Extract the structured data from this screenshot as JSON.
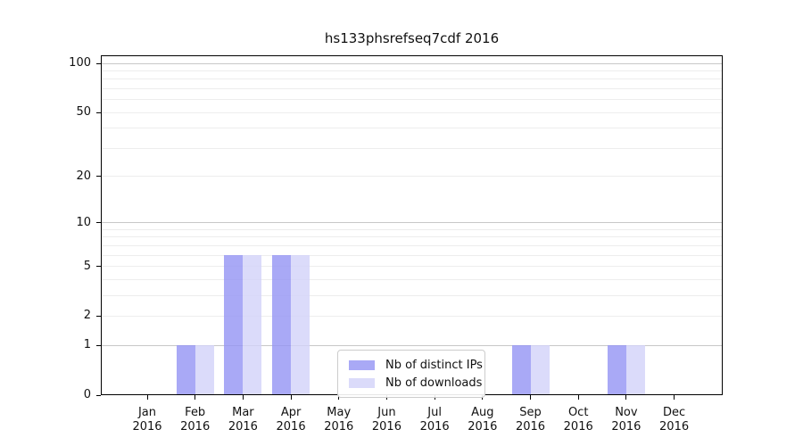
{
  "chart_data": {
    "type": "bar",
    "title": "hs133phsrefseq7cdf 2016",
    "categories": [
      "Jan 2016",
      "Feb 2016",
      "Mar 2016",
      "Apr 2016",
      "May 2016",
      "Jun 2016",
      "Jul 2016",
      "Aug 2016",
      "Sep 2016",
      "Oct 2016",
      "Nov 2016",
      "Dec 2016"
    ],
    "series": [
      {
        "name": "Nb of distinct IPs",
        "color": "rgba(148,148,244,0.8)",
        "values": [
          0,
          1,
          6,
          6,
          0,
          0,
          0,
          0,
          1,
          0,
          1,
          0
        ]
      },
      {
        "name": "Nb of downloads",
        "color": "rgba(210,210,249,0.8)",
        "values": [
          0,
          1,
          6,
          6,
          0,
          0,
          0,
          0,
          1,
          0,
          1,
          0
        ]
      }
    ],
    "xlabel": "",
    "ylabel": "",
    "yscale": "log1p",
    "ylim": [
      0,
      112
    ],
    "ytick_labels": [
      "0",
      "1",
      "2",
      "5",
      "10",
      "20",
      "50",
      "100"
    ],
    "ytick_values": [
      0,
      1,
      2,
      5,
      10,
      20,
      50,
      100
    ],
    "major_gridlines": [
      1,
      10,
      100
    ],
    "minor_gridlines": [
      2,
      3,
      4,
      5,
      6,
      7,
      8,
      9,
      20,
      30,
      40,
      50,
      60,
      70,
      80,
      90
    ],
    "grid": "on",
    "legend_position": "lower center-right inside plot"
  },
  "colors": {
    "major_grid": "#c8c8c8",
    "minor_grid": "#ededed",
    "frame": "#000000",
    "text": "#111111",
    "legend_border": "#cccccc"
  }
}
